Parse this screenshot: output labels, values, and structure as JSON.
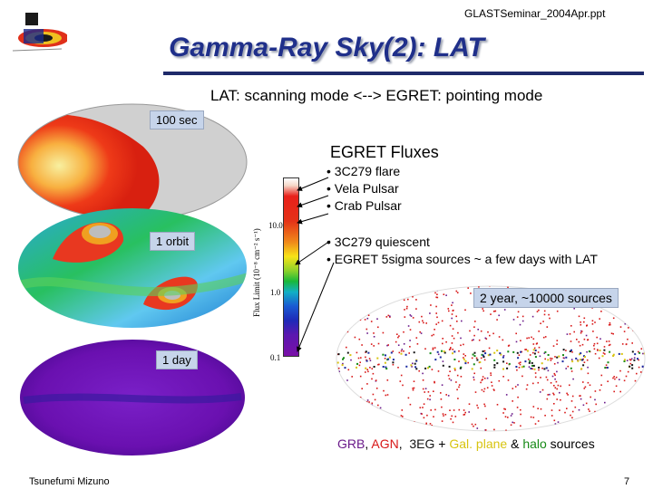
{
  "header": {
    "filename": "GLASTSeminar_2004Apr.ppt"
  },
  "slide": {
    "title": "Gamma-Ray Sky(2): LAT",
    "subtitle": "LAT: scanning mode <--> EGRET: pointing mode"
  },
  "maps": {
    "label_100sec": "100 sec",
    "label_1orbit": "1 orbit",
    "label_1day": "1 day",
    "label_2year": "2 year, ~10000 sources"
  },
  "colorbar": {
    "axis_label": "Flux Limit (10⁻⁸ cm⁻² s⁻¹)",
    "ticks": [
      "10.0",
      "1.0",
      "0.1"
    ]
  },
  "egret": {
    "title": "EGRET Fluxes",
    "bullets_a": [
      "• 3C279 flare",
      "• Vela Pulsar",
      "• Crab Pulsar"
    ],
    "bullets_b": [
      "• 3C279 quiescent",
      "• EGRET 5sigma sources ~ a few days with LAT"
    ]
  },
  "legend": {
    "grb": "GRB",
    "sep1": ",",
    "agn": "AGN",
    "sep2": ",",
    "egret3": "3EG",
    "plus": "+",
    "gal": "Gal. plane",
    "amp": "&",
    "halo": "halo",
    "tail": "sources"
  },
  "footer": {
    "author": "Tsunefumi Mizuno",
    "page": "7"
  },
  "colors": {
    "title": "#1f2f8a",
    "box": "#c6d4ea",
    "grb": "#6a1a8a",
    "agn": "#d81818",
    "gal": "#d8c410",
    "halo": "#168a16"
  }
}
